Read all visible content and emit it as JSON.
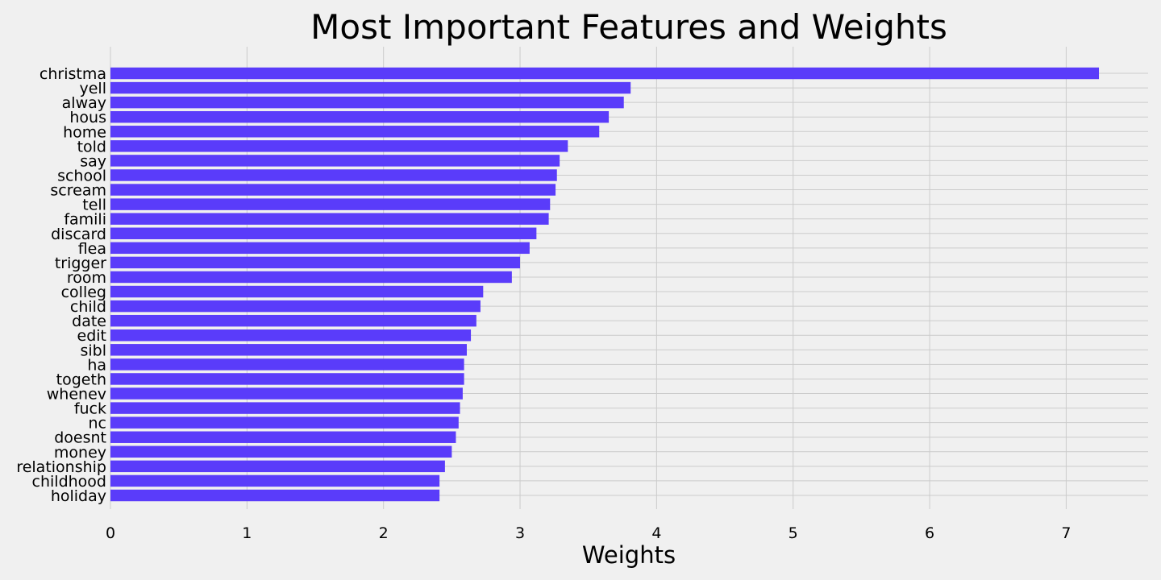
{
  "chart_data": {
    "type": "bar",
    "orientation": "horizontal",
    "title": "Most Important Features and Weights",
    "xlabel": "Weights",
    "ylabel": "",
    "xlim": [
      0,
      7.6
    ],
    "xticks": [
      0,
      1,
      2,
      3,
      4,
      5,
      6,
      7
    ],
    "grid": true,
    "legend": "none",
    "bar_color": "#5a3cfa",
    "background_color": "#f0f0f0",
    "grid_color": "#cbcbcb",
    "categories": [
      "christma",
      "yell",
      "alway",
      "hous",
      "home",
      "told",
      "say",
      "school",
      "scream",
      "tell",
      "famili",
      "discard",
      "flea",
      "trigger",
      "room",
      "colleg",
      "child",
      "date",
      "edit",
      "sibl",
      "ha",
      "togeth",
      "whenev",
      "fuck",
      "nc",
      "doesnt",
      "money",
      "relationship",
      "childhood",
      "holiday"
    ],
    "values": [
      7.24,
      3.81,
      3.76,
      3.65,
      3.58,
      3.35,
      3.29,
      3.27,
      3.26,
      3.22,
      3.21,
      3.12,
      3.07,
      3.0,
      2.94,
      2.73,
      2.71,
      2.68,
      2.64,
      2.61,
      2.59,
      2.59,
      2.58,
      2.56,
      2.55,
      2.53,
      2.5,
      2.45,
      2.41,
      2.41
    ]
  }
}
